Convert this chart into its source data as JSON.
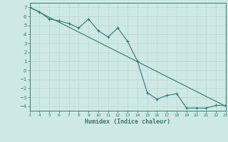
{
  "x": [
    3,
    4,
    5,
    6,
    7,
    8,
    9,
    10,
    11,
    12,
    13,
    14,
    15,
    16,
    17,
    18,
    19,
    20,
    21,
    22,
    23
  ],
  "y_jagged": [
    7.0,
    6.5,
    5.7,
    5.5,
    5.2,
    4.7,
    5.7,
    4.4,
    3.7,
    4.7,
    3.2,
    1.0,
    -2.5,
    -3.2,
    -2.8,
    -2.6,
    -4.2,
    -4.2,
    -4.2,
    -3.9,
    -3.9
  ],
  "y_smooth": [
    7.0,
    6.45,
    5.9,
    5.35,
    4.8,
    4.25,
    3.7,
    3.15,
    2.6,
    2.05,
    1.5,
    0.95,
    0.4,
    -0.15,
    -0.7,
    -1.25,
    -1.8,
    -2.35,
    -2.9,
    -3.45,
    -4.0
  ],
  "xlim": [
    3,
    23
  ],
  "ylim": [
    -4.5,
    7.5
  ],
  "yticks": [
    -4,
    -3,
    -2,
    -1,
    0,
    1,
    2,
    3,
    4,
    5,
    6,
    7
  ],
  "xticks": [
    3,
    4,
    5,
    6,
    7,
    8,
    9,
    10,
    11,
    12,
    13,
    14,
    15,
    16,
    17,
    18,
    19,
    20,
    21,
    22,
    23
  ],
  "xlabel": "Humidex (Indice chaleur)",
  "line_color": "#2d7a6e",
  "bg_color": "#cde8e5",
  "grid_color": "#b8d8d4",
  "axis_color": "#3a7a6e"
}
